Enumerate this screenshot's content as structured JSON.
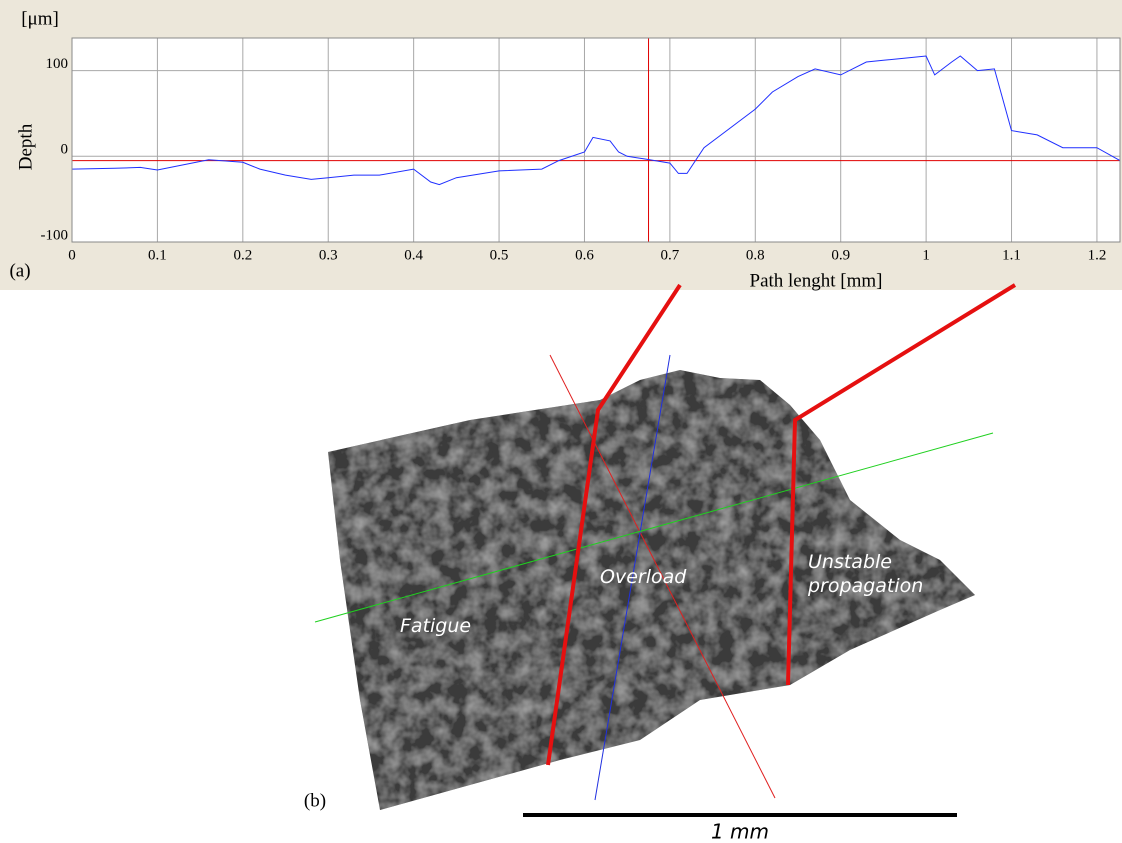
{
  "chart_data": {
    "type": "line",
    "y_unit": "[μm]",
    "ylabel": "Depth",
    "xlabel": "Path lenght [mm]",
    "panel_label": "(a)",
    "x": [
      0,
      0.05,
      0.08,
      0.1,
      0.13,
      0.16,
      0.2,
      0.22,
      0.25,
      0.28,
      0.3,
      0.33,
      0.36,
      0.4,
      0.42,
      0.43,
      0.45,
      0.5,
      0.55,
      0.57,
      0.6,
      0.61,
      0.63,
      0.64,
      0.65,
      0.67,
      0.7,
      0.71,
      0.72,
      0.74,
      0.76,
      0.78,
      0.8,
      0.82,
      0.85,
      0.87,
      0.9,
      0.93,
      0.95,
      0.98,
      1.0,
      1.01,
      1.03,
      1.04,
      1.06,
      1.08,
      1.1,
      1.13,
      1.16,
      1.2,
      1.227
    ],
    "series": [
      {
        "color": "#1f2fff",
        "values": [
          -15,
          -14,
          -13,
          -16,
          -10,
          -4,
          -7,
          -15,
          -22,
          -27,
          -25,
          -22,
          -22,
          -15,
          -30,
          -33,
          -25,
          -17,
          -15,
          -5,
          5,
          22,
          18,
          5,
          0,
          -3,
          -8,
          -20,
          -20,
          10,
          25,
          40,
          55,
          75,
          93,
          102,
          95,
          110,
          112,
          115,
          117,
          95,
          110,
          117,
          100,
          102,
          30,
          25,
          10,
          10,
          -5
        ]
      }
    ],
    "cursor_x": 0.675,
    "cursor_y": -5,
    "cursor_color": "#e00000",
    "xlim": [
      0,
      1.227
    ],
    "ylim": [
      -100,
      138
    ],
    "xticks": [
      0,
      0.1,
      0.2,
      0.3,
      0.4,
      0.5,
      0.6,
      0.7,
      0.8,
      0.9,
      1,
      1.1,
      1.2
    ],
    "yticks": [
      -100,
      0,
      100
    ],
    "grid": true
  },
  "panel_b": {
    "label": "(b)",
    "regions": [
      "Fatigue",
      "Overload",
      "Unstable propagation"
    ],
    "scale_bar": "1 mm"
  }
}
